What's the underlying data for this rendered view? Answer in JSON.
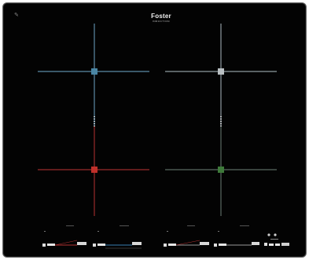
{
  "brand": {
    "name": "Foster",
    "subtitle": "INDUCTION"
  },
  "zones": [
    {
      "id": "rear-left",
      "color": "#5b8aa6",
      "hub_color": "#4a85a3"
    },
    {
      "id": "rear-right",
      "color": "#8f9aa0",
      "hub_color": "#b9bfc2"
    },
    {
      "id": "front-left",
      "color": "#9a2b2b",
      "hub_color": "#c0302a"
    },
    {
      "id": "front-right",
      "color": "#5a6a62",
      "hub_color": "#3e7a3a"
    }
  ],
  "controls": {
    "slider_colors": {
      "red": "#b03030",
      "blue": "#3a7fb0",
      "grey": "#9a9a9a"
    }
  },
  "icons": [
    "power-icon",
    "lock-icon",
    "timer-icon"
  ]
}
